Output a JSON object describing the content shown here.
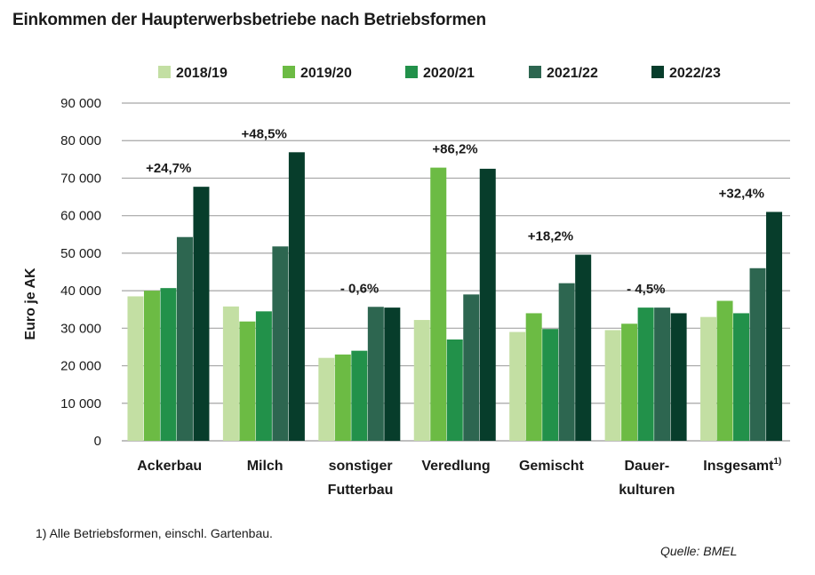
{
  "title": "Einkommen der Haupterwerbsbetriebe nach Betriebsformen",
  "footnote": "1) Alle Betriebsformen, einschl. Gartenbau.",
  "source": "Quelle: BMEL",
  "colors": {
    "2018/19": "#c3dfa3",
    "2019/20": "#6cbb44",
    "2020/21": "#22914a",
    "2021/22": "#2d6650",
    "2022/23": "#073d2b",
    "grid": "#a6a6a6"
  },
  "chart_data": {
    "type": "bar",
    "title": "Einkommen der Haupterwerbsbetriebe nach Betriebsformen",
    "ylabel": "Euro je AK",
    "xlabel": "",
    "ylim": [
      0,
      90000
    ],
    "yticks": [
      0,
      10000,
      20000,
      30000,
      40000,
      50000,
      60000,
      70000,
      80000,
      90000
    ],
    "ytick_labels": [
      "0",
      "10 000",
      "20 000",
      "30 000",
      "40 000",
      "50 000",
      "60 000",
      "70 000",
      "80 000",
      "90 000"
    ],
    "grid": true,
    "legend_position": "top",
    "categories": [
      {
        "lines": [
          "Ackerbau"
        ]
      },
      {
        "lines": [
          "Milch"
        ]
      },
      {
        "lines": [
          "sonstiger",
          "Futterbau"
        ]
      },
      {
        "lines": [
          "Veredlung"
        ]
      },
      {
        "lines": [
          "Gemischt"
        ]
      },
      {
        "lines": [
          "Dauer-",
          "kulturen"
        ]
      },
      {
        "lines": [
          "Insgesamt"
        ],
        "sup": "1)"
      }
    ],
    "series": [
      {
        "name": "2018/19",
        "values": [
          38500,
          35800,
          22100,
          32200,
          29000,
          29500,
          33000
        ]
      },
      {
        "name": "2019/20",
        "values": [
          40000,
          31800,
          23000,
          72800,
          34000,
          31200,
          37300
        ]
      },
      {
        "name": "2020/21",
        "values": [
          40700,
          34500,
          24000,
          27000,
          29800,
          35500,
          34000
        ]
      },
      {
        "name": "2021/22",
        "values": [
          54300,
          51800,
          35700,
          39000,
          42000,
          35500,
          46000
        ]
      },
      {
        "name": "2022/23",
        "values": [
          67700,
          76900,
          35500,
          72500,
          49600,
          34000,
          61000
        ]
      }
    ],
    "annotations": [
      "+24,7%",
      "+48,5%",
      "- 0,6%",
      "+86,2%",
      "+18,2%",
      "- 4,5%",
      "+32,4%"
    ]
  }
}
